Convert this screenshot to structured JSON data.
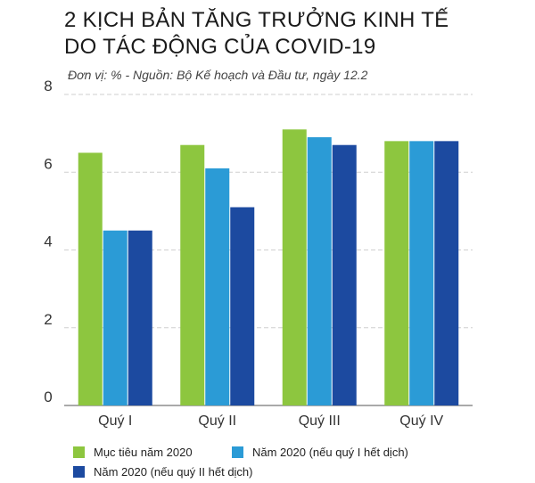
{
  "title_lines": [
    "2 KỊCH BẢN TĂNG TRƯỞNG KINH TẾ",
    "DO TÁC ĐỘNG CỦA COVID-19"
  ],
  "subtitle": "Đơn vị: %   -  Nguồn: Bộ Kế hoạch và Đầu tư, ngày 12.2",
  "chart_data": {
    "type": "bar",
    "title": "2 KỊCH BẢN TĂNG TRƯỞNG KINH TẾ DO TÁC ĐỘNG CỦA COVID-19",
    "categories": [
      "Quý I",
      "Quý II",
      "Quý III",
      "Quý IV"
    ],
    "series": [
      {
        "name": "Mục tiêu năm 2020",
        "color": "#8dc63f",
        "values": [
          6.5,
          6.7,
          7.1,
          6.8
        ]
      },
      {
        "name": "Năm 2020 (nếu quý I hết dịch)",
        "color": "#2b9bd6",
        "values": [
          4.5,
          6.1,
          6.9,
          6.8
        ]
      },
      {
        "name": "Năm 2020 (nếu quý II hết dịch)",
        "color": "#1c4aa0",
        "values": [
          4.5,
          5.1,
          6.7,
          6.8
        ]
      }
    ],
    "yticks": [
      0,
      2,
      4,
      6,
      8
    ],
    "ylim": [
      0,
      8
    ],
    "grid": true,
    "legend": "bottom"
  }
}
